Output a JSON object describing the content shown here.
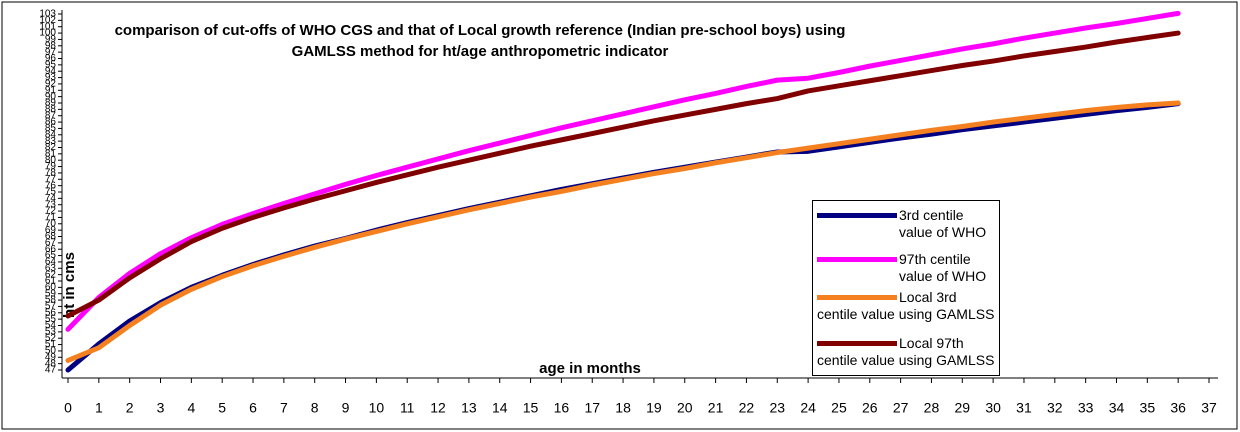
{
  "chart_data": {
    "type": "line",
    "title": "comparison of cut-offs of WHO CGS and that of Local growth reference (Indian pre-school boys) using GAMLSS method for ht/age anthropometric indicator",
    "x_label": "age in months",
    "y_label": "ht in cms",
    "x": [
      0,
      1,
      2,
      3,
      4,
      5,
      6,
      7,
      8,
      9,
      10,
      11,
      12,
      13,
      14,
      15,
      16,
      17,
      18,
      19,
      20,
      21,
      22,
      23,
      24,
      25,
      26,
      27,
      28,
      29,
      30,
      31,
      32,
      33,
      34,
      35,
      36
    ],
    "xlim": [
      0,
      37
    ],
    "xticks": [
      0,
      1,
      2,
      3,
      4,
      5,
      6,
      7,
      8,
      9,
      10,
      11,
      12,
      13,
      14,
      15,
      16,
      17,
      18,
      19,
      20,
      21,
      22,
      23,
      24,
      25,
      26,
      27,
      28,
      29,
      30,
      31,
      32,
      33,
      34,
      35,
      36,
      37
    ],
    "ylim": [
      47,
      103
    ],
    "yticks": [
      47,
      48,
      49,
      50,
      51,
      52,
      53,
      54,
      55,
      56,
      57,
      58,
      59,
      60,
      61,
      62,
      63,
      64,
      65,
      66,
      67,
      68,
      69,
      70,
      71,
      72,
      73,
      74,
      75,
      76,
      77,
      78,
      79,
      80,
      81,
      82,
      83,
      84,
      85,
      86,
      87,
      88,
      89,
      90,
      91,
      92,
      93,
      94,
      95,
      96,
      97,
      98,
      99,
      100,
      101,
      102,
      103
    ],
    "series": [
      {
        "name": "3rd centile value of WHO",
        "color": "#000080",
        "values": [
          47,
          51.1,
          54.7,
          57.6,
          60.0,
          61.9,
          63.6,
          65.1,
          66.5,
          67.7,
          69.0,
          70.2,
          71.3,
          72.4,
          73.4,
          74.4,
          75.4,
          76.3,
          77.2,
          78.1,
          78.9,
          79.7,
          80.5,
          81.3,
          81.4,
          82.1,
          82.8,
          83.5,
          84.1,
          84.8,
          85.4,
          86.0,
          86.6,
          87.2,
          87.8,
          88.3,
          88.9
        ]
      },
      {
        "name": "97th centile value of WHO",
        "color": "#ff00ff",
        "values": [
          53.4,
          58.4,
          62.2,
          65.3,
          67.8,
          69.9,
          71.6,
          73.2,
          74.7,
          76.2,
          77.6,
          78.9,
          80.2,
          81.5,
          82.7,
          83.9,
          85.1,
          86.2,
          87.3,
          88.4,
          89.5,
          90.5,
          91.6,
          92.6,
          92.9,
          93.8,
          94.8,
          95.7,
          96.6,
          97.5,
          98.3,
          99.2,
          100.0,
          100.8,
          101.5,
          102.3,
          103.1
        ]
      },
      {
        "name": "Local 3rd centile value using GAMLSS",
        "color": "#f4801f",
        "values": [
          48.5,
          50.5,
          54,
          57.2,
          59.7,
          61.7,
          63.4,
          64.9,
          66.3,
          67.6,
          68.8,
          70,
          71.1,
          72.2,
          73.2,
          74.2,
          75.1,
          76.1,
          77,
          77.9,
          78.7,
          79.6,
          80.4,
          81.2,
          81.9,
          82.6,
          83.3,
          84,
          84.7,
          85.3,
          86,
          86.6,
          87.2,
          87.8,
          88.3,
          88.7,
          89
        ]
      },
      {
        "name": "Local 97th centile value using GAMLSS",
        "color": "#800000",
        "values": [
          55.5,
          58,
          61.5,
          64.5,
          67.2,
          69.3,
          71,
          72.5,
          73.9,
          75.2,
          76.5,
          77.7,
          78.9,
          80,
          81.1,
          82.2,
          83.2,
          84.2,
          85.2,
          86.2,
          87.1,
          88,
          88.9,
          89.7,
          90.9,
          91.7,
          92.5,
          93.3,
          94.1,
          94.9,
          95.6,
          96.4,
          97.1,
          97.8,
          98.6,
          99.3,
          100
        ]
      }
    ]
  }
}
